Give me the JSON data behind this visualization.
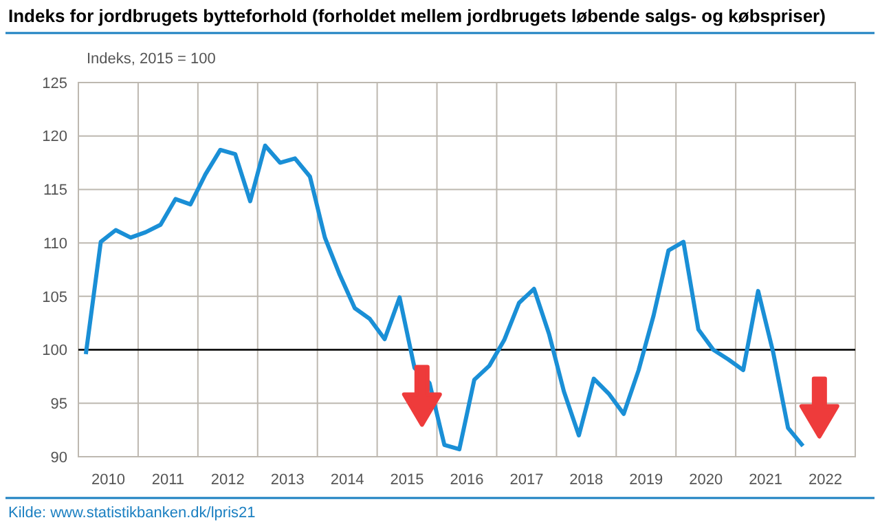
{
  "chart_data": {
    "type": "line",
    "title": "Indeks for jordbrugets bytteforhold (forholdet mellem jordbrugets løbende salgs- og købspriser)",
    "ylabel": "Indeks, 2015 = 100",
    "annotations": [
      "Kilde: www.statistikbanken.dk/lpris21"
    ],
    "x": [
      2010.125,
      2010.375,
      2010.625,
      2010.875,
      2011.125,
      2011.375,
      2011.625,
      2011.875,
      2012.125,
      2012.375,
      2012.625,
      2012.875,
      2013.125,
      2013.375,
      2013.625,
      2013.875,
      2014.125,
      2014.375,
      2014.625,
      2014.875,
      2015.125,
      2015.375,
      2015.625,
      2015.875,
      2016.125,
      2016.375,
      2016.625,
      2016.875,
      2017.125,
      2017.375,
      2017.625,
      2017.875,
      2018.125,
      2018.375,
      2018.625,
      2018.875,
      2019.125,
      2019.375,
      2019.625,
      2019.875,
      2020.125,
      2020.375,
      2020.625,
      2020.875,
      2021.125,
      2021.375,
      2021.625,
      2021.875,
      2022.125
    ],
    "series": [
      {
        "color": "#1a8fd6",
        "values": [
          99.6,
          110.1,
          111.2,
          110.5,
          111.0,
          111.7,
          114.1,
          113.6,
          116.4,
          118.7,
          118.3,
          113.9,
          119.1,
          117.5,
          117.9,
          116.2,
          110.5,
          107.0,
          103.9,
          102.9,
          101.0,
          104.9,
          98.3,
          96.9,
          91.1,
          90.7,
          97.2,
          98.5,
          100.9,
          104.4,
          105.7,
          101.5,
          96.1,
          92.0,
          97.3,
          95.9,
          94.0,
          98.1,
          103.2,
          109.3,
          110.1,
          101.9,
          100.0,
          99.1,
          98.1,
          105.5,
          99.8,
          92.7,
          91.0
        ]
      }
    ],
    "xlim": [
      2010,
      2023
    ],
    "xticks": [
      {
        "value": 2011,
        "label": null
      },
      {
        "value": 2012,
        "label": null
      },
      {
        "value": 2013,
        "label": null
      },
      {
        "value": 2014,
        "label": null
      },
      {
        "value": 2015,
        "label": null
      },
      {
        "value": 2016,
        "label": null
      },
      {
        "value": 2017,
        "label": null
      },
      {
        "value": 2018,
        "label": null
      },
      {
        "value": 2019,
        "label": null
      },
      {
        "value": 2020,
        "label": null
      },
      {
        "value": 2021,
        "label": null
      },
      {
        "value": 2022,
        "label": null
      },
      {
        "value": 2010.5,
        "label": "2010"
      },
      {
        "value": 2011.5,
        "label": "2011"
      },
      {
        "value": 2012.5,
        "label": "2012"
      },
      {
        "value": 2013.5,
        "label": "2013"
      },
      {
        "value": 2014.5,
        "label": "2014"
      },
      {
        "value": 2015.5,
        "label": "2015"
      },
      {
        "value": 2016.5,
        "label": "2016"
      },
      {
        "value": 2017.5,
        "label": "2017"
      },
      {
        "value": 2018.5,
        "label": "2018"
      },
      {
        "value": 2019.5,
        "label": "2019"
      },
      {
        "value": 2020.5,
        "label": "2020"
      },
      {
        "value": 2021.5,
        "label": "2021"
      },
      {
        "value": 2022.5,
        "label": "2022"
      }
    ],
    "ylim": [
      90,
      125
    ],
    "yticks": [
      90,
      95,
      100,
      105,
      110,
      115,
      120,
      125
    ],
    "grid": true,
    "marker": "none",
    "line_style": "solid",
    "ref_lines": [
      {
        "axis": "y",
        "value": 100,
        "color": "#000000"
      }
    ]
  }
}
